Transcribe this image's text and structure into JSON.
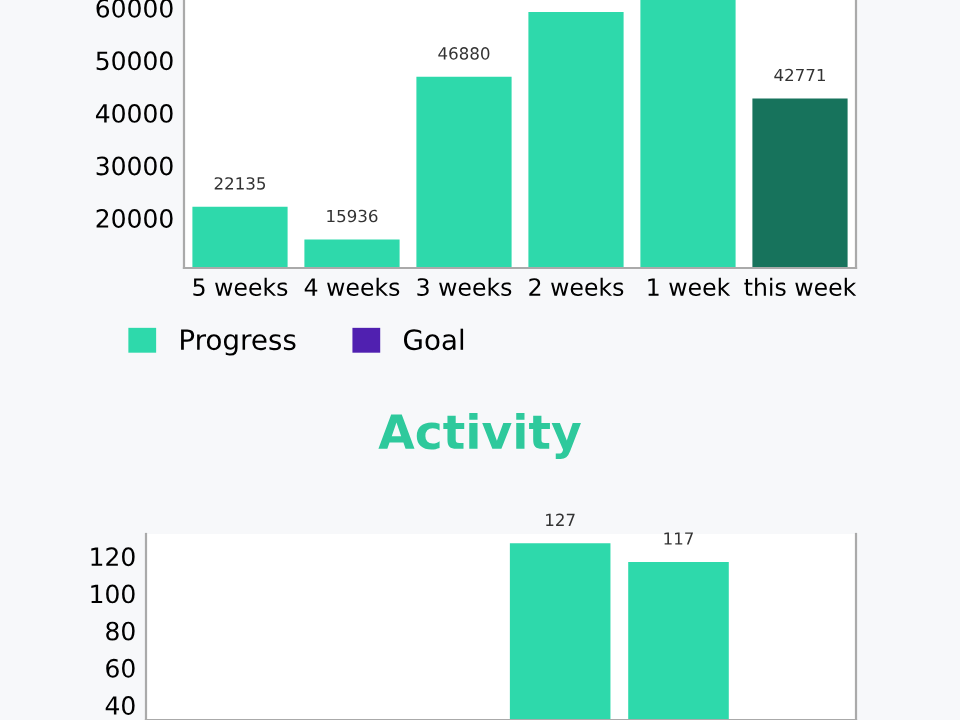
{
  "chart_data": [
    {
      "type": "bar",
      "categories": [
        "5 weeks",
        "4 weeks",
        "3 weeks",
        "2 weeks",
        "1 week",
        "this week"
      ],
      "series": [
        {
          "name": "Progress",
          "color": "#2ed9ab",
          "colors": [
            "#2ed9ab",
            "#2ed9ab",
            "#2ed9ab",
            "#2ed9ab",
            "#2ed9ab",
            "#17735c"
          ],
          "values": [
            22135,
            15936,
            46880,
            59200,
            61500,
            42771
          ],
          "value_labels": [
            "22135",
            "15936",
            "46880",
            null,
            null,
            "42771"
          ]
        },
        {
          "name": "Goal",
          "color": "#5020b0",
          "values": [
            null,
            null,
            null,
            null,
            null,
            null
          ]
        }
      ],
      "ylim": [
        10500,
        61500
      ],
      "yticks": [
        20000,
        30000,
        40000,
        50000,
        60000
      ],
      "grid": false,
      "legend": "bottom left"
    },
    {
      "type": "bar",
      "title": "Activity",
      "categories": [
        null,
        null,
        null,
        null,
        null,
        null
      ],
      "series": [
        {
          "color": "#2ed9ab",
          "values": [
            null,
            null,
            null,
            127,
            117,
            null
          ],
          "value_labels": [
            null,
            null,
            null,
            "127",
            "117",
            null
          ]
        }
      ],
      "ylim": [
        32,
        132
      ],
      "yticks": [
        40,
        60,
        80,
        100,
        120
      ],
      "grid": false,
      "tick_labels": "y"
    }
  ]
}
